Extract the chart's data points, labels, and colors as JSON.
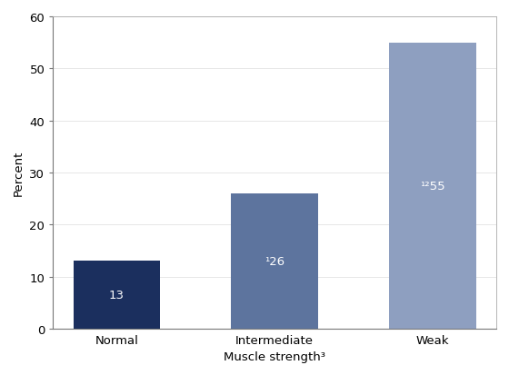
{
  "categories": [
    "Normal",
    "Intermediate",
    "Weak"
  ],
  "values": [
    13,
    26,
    55
  ],
  "bar_colors": [
    "#1b2f5e",
    "#5d749e",
    "#8e9fc0"
  ],
  "bar_labels_main": [
    "13",
    "26",
    "55"
  ],
  "bar_labels_sup": [
    "",
    "¹",
    "¹²"
  ],
  "label_colors": [
    "white",
    "white",
    "white"
  ],
  "ylabel": "Percent",
  "xlabel": "Muscle strength³",
  "ylim": [
    0,
    60
  ],
  "yticks": [
    0,
    10,
    20,
    30,
    40,
    50,
    60
  ],
  "bar_width": 0.55,
  "label_fontsize": 9.5,
  "axis_fontsize": 9.5,
  "tick_fontsize": 9.5,
  "spine_color": "#777777",
  "frame_color": "#aaaaaa"
}
